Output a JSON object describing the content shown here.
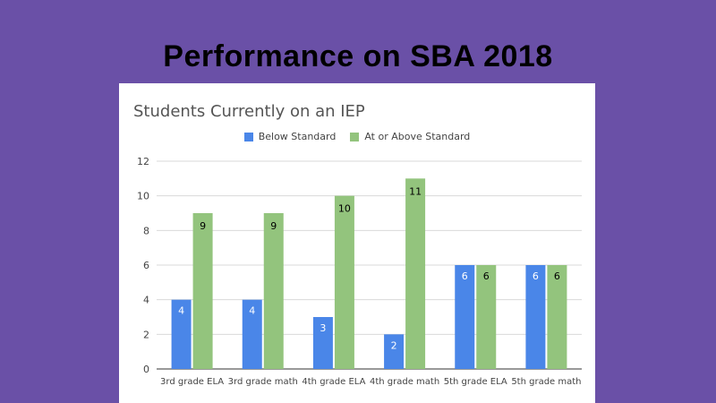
{
  "slide": {
    "title": "Performance on SBA 2018"
  },
  "colors": {
    "background": "#6a50a7",
    "below_standard": "#4a86e8",
    "at_or_above_standard": "#93c47d"
  },
  "chart_data": {
    "type": "bar",
    "title": "Students Currently on an IEP",
    "categories": [
      "3rd grade ELA",
      "3rd grade math",
      "4th grade ELA",
      "4th grade math",
      "5th grade ELA",
      "5th grade math"
    ],
    "series": [
      {
        "name": "Below Standard",
        "values": [
          4,
          4,
          3,
          2,
          6,
          6
        ]
      },
      {
        "name": "At or Above Standard",
        "values": [
          9,
          9,
          10,
          11,
          6,
          6
        ]
      }
    ],
    "ylim": [
      0,
      12
    ],
    "yticks": [
      0,
      2,
      4,
      6,
      8,
      10,
      12
    ],
    "grid": true,
    "legend_position": "top"
  }
}
